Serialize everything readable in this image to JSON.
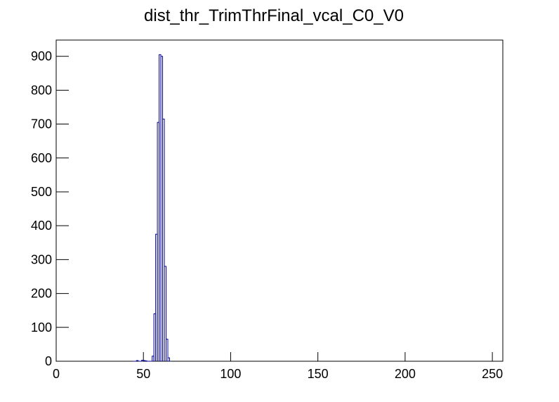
{
  "chart_data": {
    "type": "histogram",
    "title": "dist_thr_TrimThrFinal_vcal_C0_V0",
    "bins": [
      44,
      45,
      46,
      47,
      48,
      49,
      50,
      51,
      52,
      53,
      54,
      55,
      56,
      57,
      58,
      59,
      60,
      61,
      62,
      63,
      64,
      65,
      66
    ],
    "values": [
      0,
      0,
      2,
      0,
      0,
      3,
      2,
      1,
      0,
      0,
      0,
      15,
      140,
      375,
      705,
      905,
      900,
      715,
      280,
      65,
      10,
      0
    ],
    "color": "#000099",
    "xlim": [
      0,
      256
    ],
    "xticks": [
      0,
      50,
      100,
      150,
      200,
      250
    ],
    "ylim": [
      0,
      948
    ],
    "yticks": [
      0,
      100,
      200,
      300,
      400,
      500,
      600,
      700,
      800,
      900
    ]
  }
}
